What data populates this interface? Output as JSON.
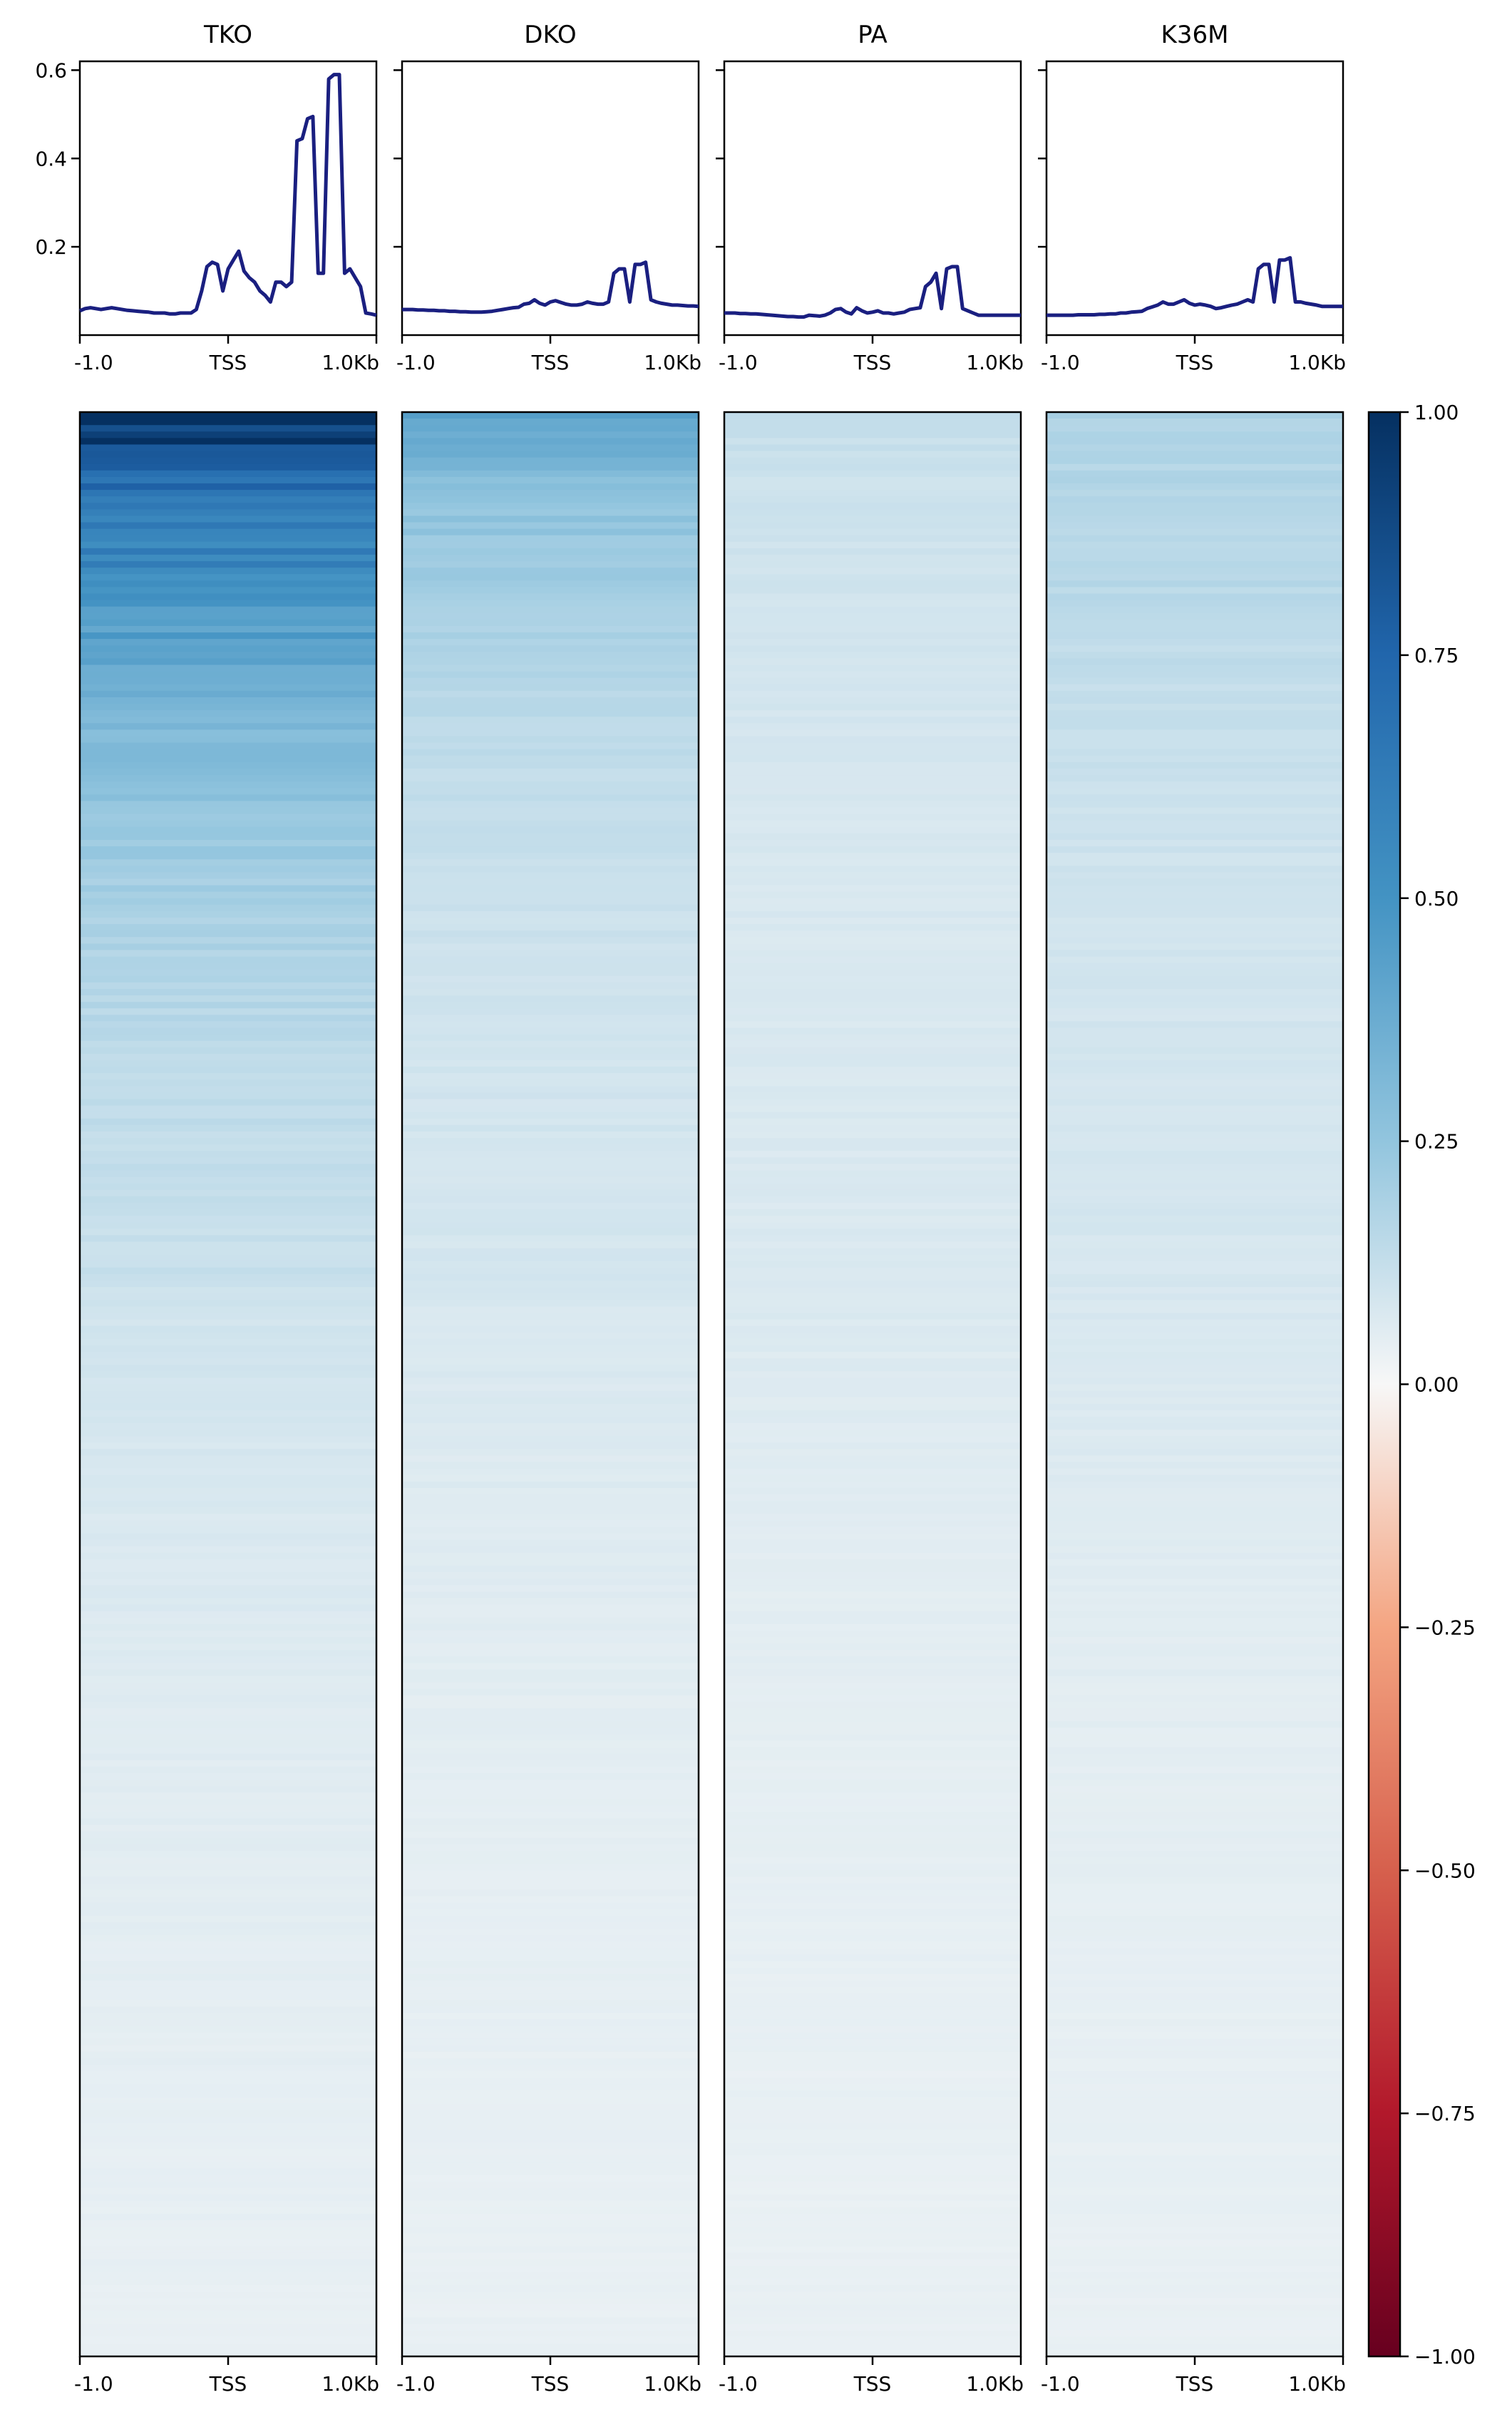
{
  "chart_data": {
    "type": "heatmap",
    "panels": [
      {
        "title": "TKO",
        "profile": [
          0.055,
          0.06,
          0.062,
          0.06,
          0.058,
          0.06,
          0.062,
          0.06,
          0.058,
          0.056,
          0.055,
          0.054,
          0.053,
          0.052,
          0.05,
          0.05,
          0.05,
          0.048,
          0.048,
          0.05,
          0.05,
          0.05,
          0.058,
          0.1,
          0.155,
          0.165,
          0.16,
          0.1,
          0.15,
          0.17,
          0.19,
          0.145,
          0.13,
          0.12,
          0.1,
          0.09,
          0.075,
          0.12,
          0.12,
          0.11,
          0.12,
          0.44,
          0.445,
          0.49,
          0.495,
          0.14,
          0.14,
          0.58,
          0.59,
          0.59,
          0.14,
          0.15,
          0.13,
          0.11,
          0.05,
          0.048,
          0.045
        ],
        "intensity": {
          "top": 0.95,
          "upper_band": 0.55,
          "middle": 0.1,
          "bottom": 0.03
        }
      },
      {
        "title": "DKO",
        "profile": [
          0.058,
          0.058,
          0.058,
          0.057,
          0.057,
          0.056,
          0.056,
          0.055,
          0.055,
          0.054,
          0.054,
          0.053,
          0.053,
          0.052,
          0.052,
          0.052,
          0.053,
          0.054,
          0.056,
          0.058,
          0.06,
          0.062,
          0.063,
          0.07,
          0.072,
          0.08,
          0.072,
          0.068,
          0.075,
          0.078,
          0.074,
          0.07,
          0.068,
          0.068,
          0.07,
          0.075,
          0.072,
          0.07,
          0.07,
          0.075,
          0.14,
          0.15,
          0.15,
          0.075,
          0.16,
          0.16,
          0.165,
          0.08,
          0.075,
          0.072,
          0.07,
          0.068,
          0.068,
          0.067,
          0.066,
          0.066,
          0.065
        ],
        "intensity": {
          "top": 0.4,
          "upper_band": 0.22,
          "middle": 0.08,
          "bottom": 0.03
        }
      },
      {
        "title": "PA",
        "profile": [
          0.05,
          0.05,
          0.05,
          0.049,
          0.049,
          0.048,
          0.048,
          0.047,
          0.046,
          0.045,
          0.044,
          0.043,
          0.042,
          0.042,
          0.041,
          0.041,
          0.045,
          0.044,
          0.043,
          0.045,
          0.05,
          0.058,
          0.06,
          0.052,
          0.048,
          0.062,
          0.055,
          0.05,
          0.052,
          0.055,
          0.05,
          0.05,
          0.048,
          0.05,
          0.052,
          0.058,
          0.06,
          0.062,
          0.11,
          0.12,
          0.14,
          0.06,
          0.15,
          0.155,
          0.155,
          0.06,
          0.055,
          0.05,
          0.045,
          0.045,
          0.045,
          0.045,
          0.045,
          0.045,
          0.045,
          0.045,
          0.045
        ],
        "intensity": {
          "top": 0.12,
          "upper_band": 0.1,
          "middle": 0.07,
          "bottom": 0.03
        }
      },
      {
        "title": "K36M",
        "profile": [
          0.045,
          0.045,
          0.045,
          0.045,
          0.045,
          0.045,
          0.046,
          0.046,
          0.046,
          0.046,
          0.047,
          0.047,
          0.048,
          0.048,
          0.05,
          0.05,
          0.052,
          0.053,
          0.054,
          0.06,
          0.064,
          0.068,
          0.075,
          0.07,
          0.07,
          0.075,
          0.08,
          0.072,
          0.068,
          0.07,
          0.068,
          0.065,
          0.06,
          0.062,
          0.065,
          0.068,
          0.07,
          0.075,
          0.08,
          0.075,
          0.15,
          0.16,
          0.16,
          0.075,
          0.17,
          0.17,
          0.175,
          0.075,
          0.075,
          0.072,
          0.07,
          0.068,
          0.065,
          0.065,
          0.065,
          0.065,
          0.065
        ],
        "intensity": {
          "top": 0.18,
          "upper_band": 0.16,
          "middle": 0.08,
          "bottom": 0.03
        }
      }
    ],
    "profile_yticks": [
      "0.2",
      "0.4",
      "0.6"
    ],
    "profile_ylim": [
      0.0,
      0.62
    ],
    "xticks": [
      "-1.0",
      "TSS",
      "1.0Kb"
    ],
    "line_color": "#1a1f80",
    "colorbar": {
      "ticks": [
        "−1.00",
        "−0.75",
        "−0.50",
        "−0.25",
        "0.00",
        "0.25",
        "0.50",
        "0.75",
        "1.00"
      ],
      "vmin": -1.0,
      "vmax": 1.0,
      "colormap": "RdBu"
    }
  }
}
